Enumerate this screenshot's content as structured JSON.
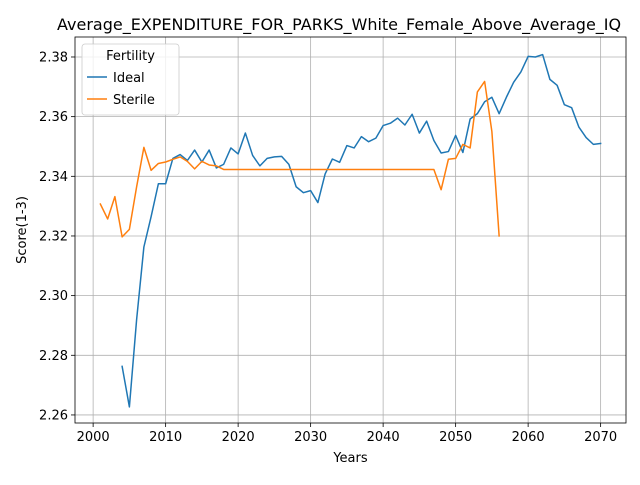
{
  "chart_data": {
    "type": "line",
    "title": "Average_EXPENDITURE_FOR_PARKS_White_Female_Above_Average_IQ",
    "xlabel": "Years",
    "ylabel": "Score(1-3)",
    "xlim": [
      1997.5,
      2073.5
    ],
    "ylim": [
      2.2573,
      2.3867
    ],
    "xticks": [
      2000,
      2010,
      2020,
      2030,
      2040,
      2050,
      2060,
      2070
    ],
    "xtick_labels": [
      "2000",
      "2010",
      "2020",
      "2030",
      "2040",
      "2050",
      "2060",
      "2070"
    ],
    "yticks": [
      2.26,
      2.28,
      2.3,
      2.32,
      2.34,
      2.36,
      2.38
    ],
    "ytick_labels": [
      "2.26",
      "2.28",
      "2.30",
      "2.32",
      "2.34",
      "2.36",
      "2.38"
    ],
    "grid": true,
    "legend": {
      "title": "Fertility",
      "placement": "top-left"
    },
    "series": [
      {
        "name": "Ideal",
        "color": "#1f77b4",
        "x": [
          2004,
          2005,
          2006,
          2007,
          2008,
          2009,
          2010,
          2011,
          2012,
          2013,
          2014,
          2015,
          2016,
          2017,
          2018,
          2019,
          2020,
          2021,
          2022,
          2023,
          2024,
          2025,
          2026,
          2027,
          2028,
          2029,
          2030,
          2031,
          2032,
          2033,
          2034,
          2035,
          2036,
          2037,
          2038,
          2039,
          2040,
          2041,
          2042,
          2043,
          2044,
          2045,
          2046,
          2047,
          2048,
          2049,
          2050,
          2051,
          2052,
          2053,
          2054,
          2055,
          2056,
          2057,
          2058,
          2059,
          2060,
          2061,
          2062,
          2063,
          2064,
          2065,
          2066,
          2067,
          2068,
          2069,
          2070
        ],
        "values": [
          2.2763,
          2.2627,
          2.292,
          2.3163,
          2.3265,
          2.3375,
          2.3375,
          2.346,
          2.3473,
          2.3453,
          2.3488,
          2.3448,
          2.3488,
          2.3428,
          2.344,
          2.3495,
          2.3475,
          2.3545,
          2.347,
          2.3435,
          2.346,
          2.3465,
          2.3467,
          2.344,
          2.3365,
          2.3345,
          2.3352,
          2.3312,
          2.3408,
          2.3458,
          2.3447,
          2.3503,
          2.3495,
          2.3533,
          2.3516,
          2.3528,
          2.357,
          2.3578,
          2.3595,
          2.3572,
          2.3608,
          2.3545,
          2.3585,
          2.352,
          2.3478,
          2.3483,
          2.3537,
          2.348,
          2.3592,
          2.361,
          2.365,
          2.3665,
          2.361,
          2.3665,
          2.3715,
          2.375,
          2.3802,
          2.38,
          2.3808,
          2.3725,
          2.3705,
          2.364,
          2.363,
          2.3565,
          2.353,
          2.3507,
          2.351
        ]
      },
      {
        "name": "Sterile",
        "color": "#ff7f0e",
        "x": [
          2001,
          2002,
          2003,
          2004,
          2005,
          2006,
          2007,
          2008,
          2009,
          2010,
          2011,
          2012,
          2013,
          2014,
          2015,
          2016,
          2017,
          2018,
          2019,
          2020,
          2021,
          2022,
          2023,
          2024,
          2025,
          2026,
          2027,
          2028,
          2029,
          2030,
          2031,
          2032,
          2033,
          2034,
          2035,
          2036,
          2037,
          2038,
          2039,
          2040,
          2041,
          2042,
          2043,
          2044,
          2045,
          2046,
          2047,
          2048,
          2049,
          2050,
          2051,
          2052,
          2053,
          2054,
          2055,
          2056
        ],
        "values": [
          2.3307,
          2.3257,
          2.3332,
          2.3197,
          2.3222,
          2.3365,
          2.3497,
          2.342,
          2.3443,
          2.3448,
          2.3457,
          2.3465,
          2.345,
          2.3425,
          2.345,
          2.3438,
          2.3435,
          2.3423,
          2.3423,
          2.3423,
          2.3423,
          2.3423,
          2.3423,
          2.3423,
          2.3423,
          2.3423,
          2.3423,
          2.3423,
          2.3423,
          2.3423,
          2.3423,
          2.3423,
          2.3423,
          2.3423,
          2.3423,
          2.3423,
          2.3423,
          2.3423,
          2.3423,
          2.3423,
          2.3423,
          2.3423,
          2.3423,
          2.3423,
          2.3423,
          2.3423,
          2.3423,
          2.3355,
          2.3457,
          2.346,
          2.3507,
          2.3495,
          2.3683,
          2.3718,
          2.355,
          2.32
        ]
      }
    ]
  }
}
